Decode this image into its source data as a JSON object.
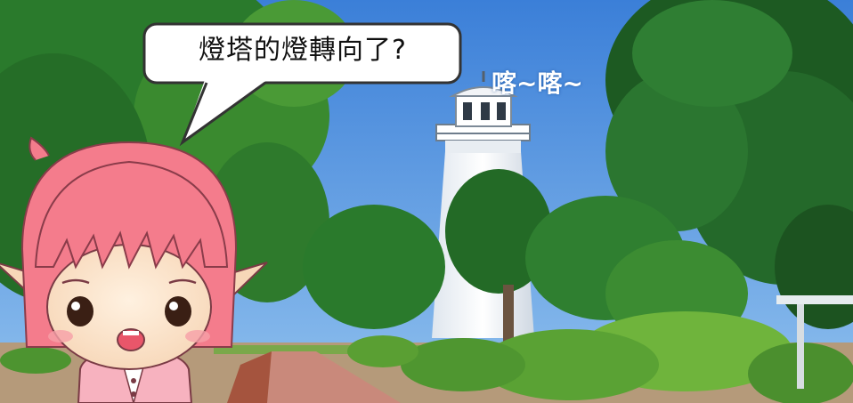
{
  "speech_bubble": {
    "text": "燈塔的燈轉向了?"
  },
  "sound_effect": {
    "text": "喀~喀~"
  },
  "colors": {
    "sky": "#3f86dc",
    "foliage_dark": "#1f5a1e",
    "foliage_light": "#6db33f",
    "lighthouse": "#f4f6f8",
    "path": "#c98a7a",
    "hair": "#f47c8c",
    "bubble_border": "#333333"
  },
  "character": {
    "icon": "pink-hair-elf-girl-icon"
  }
}
